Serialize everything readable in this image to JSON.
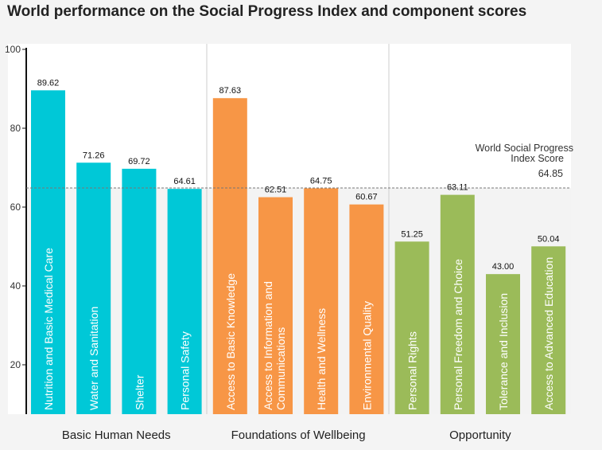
{
  "chart_data": {
    "type": "bar",
    "title": "World performance on the Social Progress Index and component scores",
    "ylim": [
      0,
      100
    ],
    "yticks": [
      20,
      40,
      60,
      80,
      100
    ],
    "categories": [
      "Nutrition and Basic Medical Care",
      "Water and Sanitation",
      "Shelter",
      "Personal Safety",
      "Access to Basic Knowledge",
      "Access to Information and Communications",
      "Health and Wellness",
      "Environmental Quality",
      "Personal Rights",
      "Personal Freedom and Choice",
      "Tolerance and Inclusion",
      "Access to Advanced Education"
    ],
    "values": [
      89.62,
      71.26,
      69.72,
      64.61,
      87.63,
      62.51,
      64.75,
      60.67,
      51.25,
      63.11,
      43.0,
      50.04
    ],
    "value_labels": [
      "89.62",
      "71.26",
      "69.72",
      "64.61",
      "87.63",
      "62.51",
      "64.75",
      "60.67",
      "51.25",
      "63.11",
      "43.00",
      "50.04"
    ],
    "groups": [
      {
        "name": "Basic Human Needs",
        "color": "#00c8d7",
        "count": 4
      },
      {
        "name": "Foundations of Wellbeing",
        "color": "#f79646",
        "count": 4
      },
      {
        "name": "Opportunity",
        "color": "#9bbb59",
        "count": 4
      }
    ],
    "reference_line": {
      "label_line1": "World Social Progress",
      "label_line2": "Index Score",
      "value": 64.85,
      "value_label": "64.85"
    }
  }
}
